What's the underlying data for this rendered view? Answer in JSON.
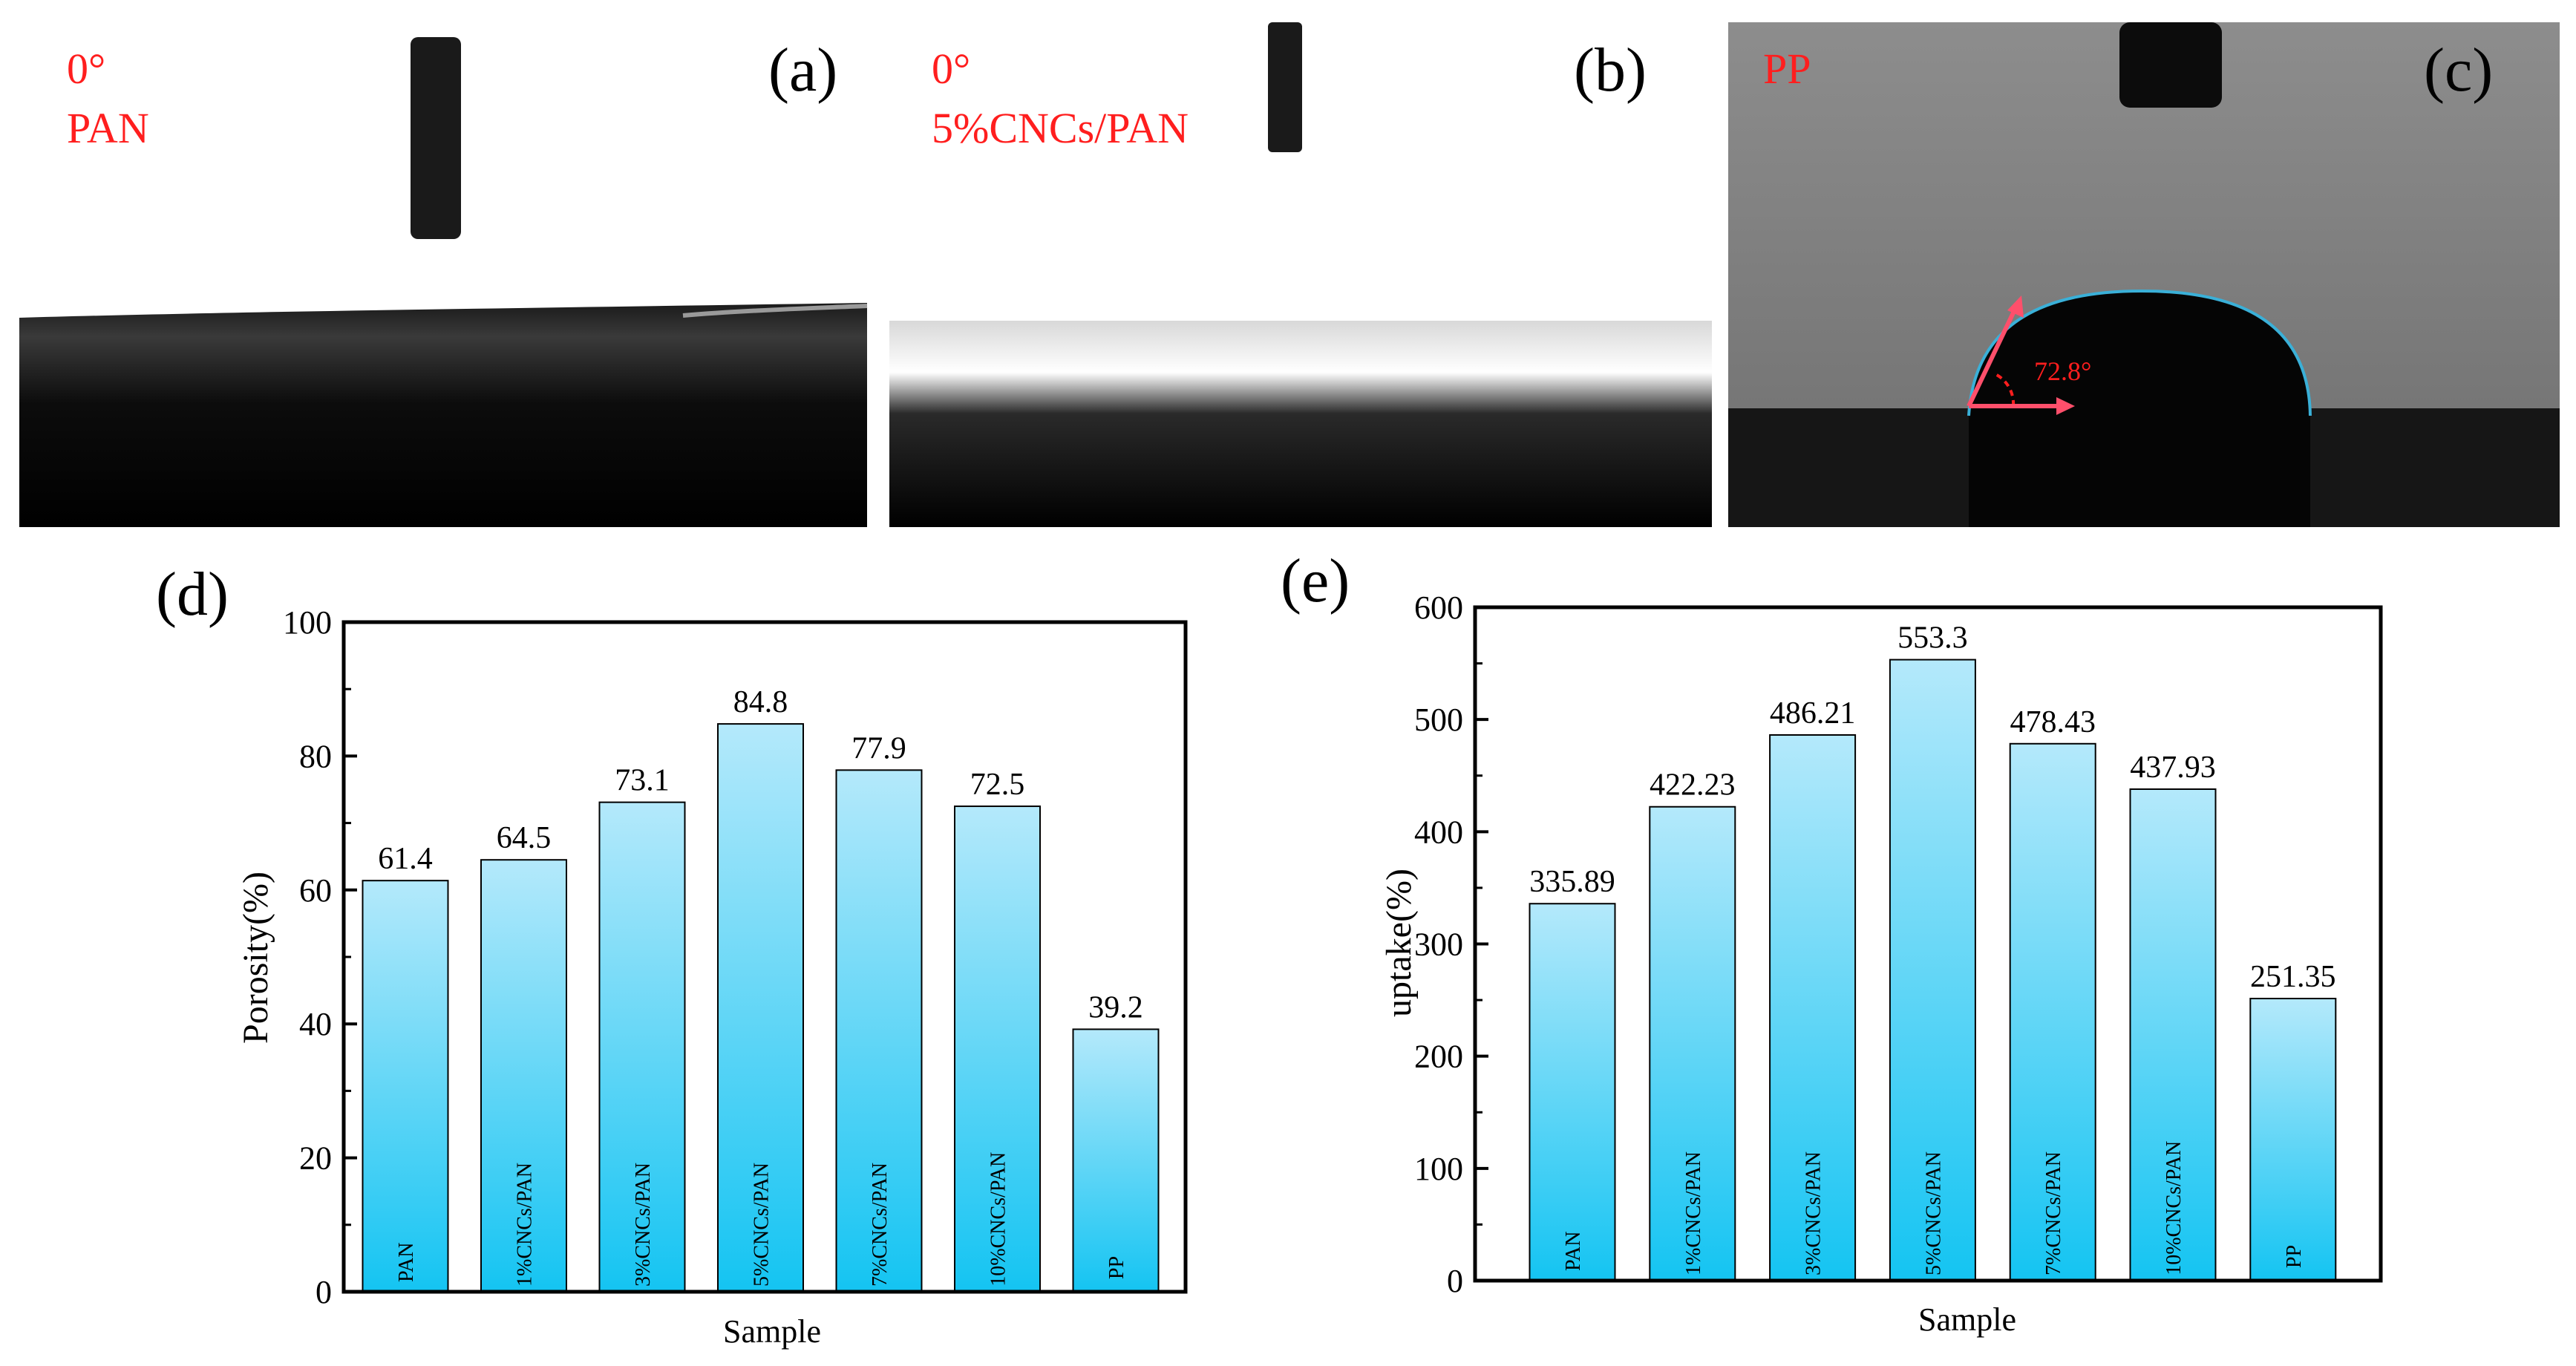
{
  "colors": {
    "annotation_red": "#ff1e1e",
    "bar_top": "#b4e9fb",
    "bar_bottom": "#14c4f2",
    "axis": "#000000",
    "arrow": "#ff4f6b"
  },
  "photos": {
    "a": {
      "panel_label": "(a)",
      "angle_text": "0°",
      "material_text": "PAN"
    },
    "b": {
      "panel_label": "(b)",
      "angle_text": "0°",
      "material_text": "5%CNCs/PAN"
    },
    "c": {
      "panel_label": "(c)",
      "material_text": "PP",
      "contact_angle_text": "72.8°"
    }
  },
  "chart_data": [
    {
      "type": "bar",
      "panel_label": "(d)",
      "title": "",
      "xlabel": "Sample",
      "ylabel": "Porosity(%)",
      "ylim": [
        0,
        100
      ],
      "yticks": [
        "0",
        "20",
        "40",
        "60",
        "80",
        "100"
      ],
      "categories": [
        "PAN",
        "1%CNCs/PAN",
        "3%CNCs/PAN",
        "5%CNCs/PAN",
        "7%CNCs/PAN",
        "10%CNCs/PAN",
        "PP"
      ],
      "values": [
        61.4,
        64.5,
        73.1,
        84.8,
        77.9,
        72.5,
        39.2
      ],
      "value_labels": [
        "61.4",
        "64.5",
        "73.1",
        "84.8",
        "77.9",
        "72.5",
        "39.2"
      ]
    },
    {
      "type": "bar",
      "panel_label": "(e)",
      "title": "",
      "xlabel": "Sample",
      "ylabel": "uptake(%)",
      "ylim": [
        0,
        600
      ],
      "yticks": [
        "0",
        "100",
        "200",
        "300",
        "400",
        "500",
        "600"
      ],
      "categories": [
        "PAN",
        "1%CNCs/PAN",
        "3%CNCs/PAN",
        "5%CNCs/PAN",
        "7%CNCs/PAN",
        "10%CNCs/PAN",
        "PP"
      ],
      "values": [
        335.89,
        422.23,
        486.21,
        553.3,
        478.43,
        437.93,
        251.35
      ],
      "value_labels": [
        "335.89",
        "422.23",
        "486.21",
        "553.3",
        "478.43",
        "437.93",
        "251.35"
      ]
    }
  ]
}
